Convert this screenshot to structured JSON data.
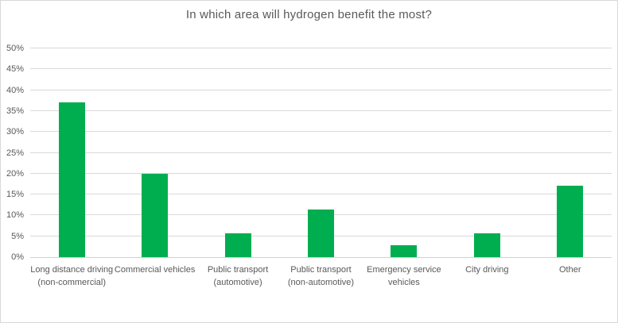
{
  "chart_data": {
    "type": "bar",
    "title": "In which area will hydrogen benefit the most?",
    "categories": [
      "Long distance driving (non-commercial)",
      "Commercial vehicles",
      "Public transport (automotive)",
      "Public transport (non-automotive)",
      "Emergency service vehicles",
      "City driving",
      "Other"
    ],
    "values": [
      37.1,
      20,
      5.7,
      11.4,
      2.9,
      5.7,
      17.1
    ],
    "xlabel": "",
    "ylabel": "",
    "ylim": [
      0,
      50
    ],
    "ytick_step": 5,
    "ytick_suffix": "%",
    "grid": true,
    "legend": false,
    "bar_color": "#00AE50",
    "text_color": "#595959",
    "gridline_color": "#d9d9d9",
    "axis_line_color": "#d1d1d1",
    "border_color": "#d9d9d9"
  }
}
